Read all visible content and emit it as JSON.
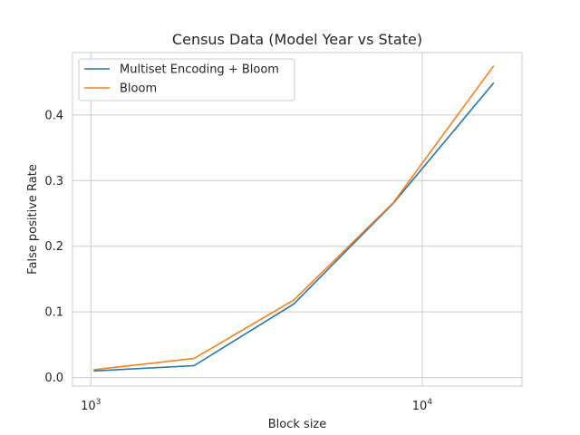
{
  "chart_data": {
    "type": "line",
    "title": "Census Data (Model Year vs State)",
    "xlabel": "Block size",
    "ylabel": "False positive Rate",
    "xscale": "log",
    "xlim": [
      880,
      20000
    ],
    "ylim": [
      -0.013,
      0.495
    ],
    "grid": true,
    "legend_position": "top-left",
    "x_ticks": [
      {
        "base": "10",
        "exp": "3",
        "value": 1000
      },
      {
        "base": "10",
        "exp": "4",
        "value": 10000
      }
    ],
    "y_ticks": [
      {
        "label": "0.0",
        "value": 0.0
      },
      {
        "label": "0.1",
        "value": 0.1
      },
      {
        "label": "0.2",
        "value": 0.2
      },
      {
        "label": "0.3",
        "value": 0.3
      },
      {
        "label": "0.4",
        "value": 0.4
      }
    ],
    "x": [
      1024,
      2048,
      4096,
      8192,
      16384
    ],
    "series": [
      {
        "name": "Multiset Encoding + Bloom",
        "color": "#1f77b4",
        "values": [
          0.01,
          0.018,
          0.112,
          0.266,
          0.448
        ]
      },
      {
        "name": "Bloom",
        "color": "#ff7f0e",
        "values": [
          0.012,
          0.029,
          0.118,
          0.267,
          0.474
        ]
      }
    ]
  }
}
